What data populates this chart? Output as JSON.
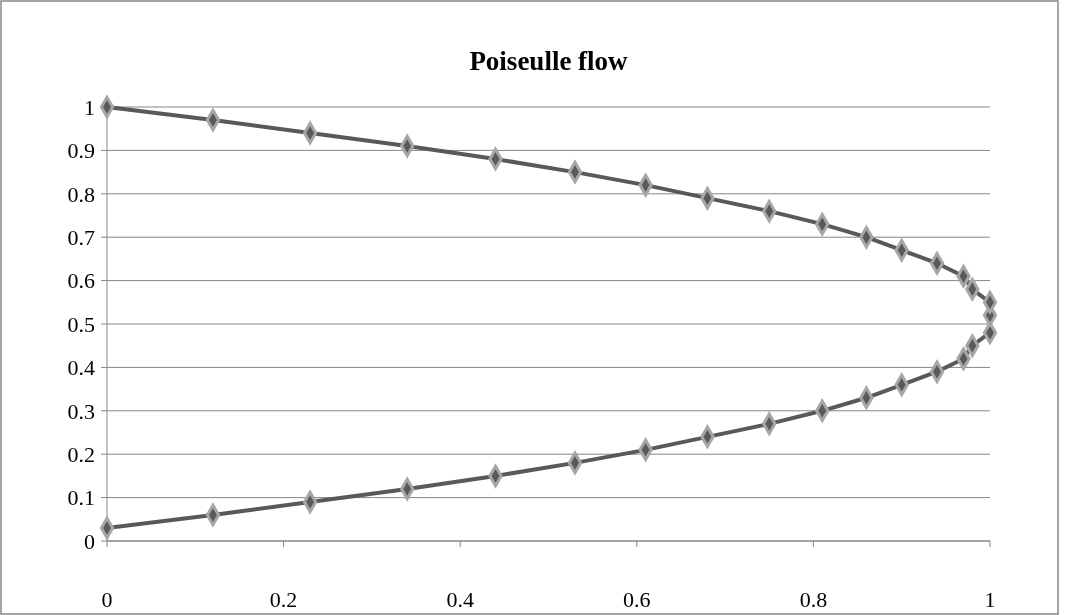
{
  "chart_data": {
    "type": "line",
    "title": "Poiseulle flow",
    "marker": "diamond",
    "grid": "y",
    "xlim": [
      0,
      1
    ],
    "xticks": [
      0,
      {
        "value": 0.2,
        "label": "0.2"
      },
      {
        "value": 0.4,
        "label": "0.4"
      },
      {
        "value": 0.6,
        "label": "0.6"
      },
      {
        "value": 0.8,
        "label": "0.8"
      },
      1
    ],
    "ylim": [
      0,
      1
    ],
    "yticks": [
      0,
      {
        "value": 0.1,
        "label": "0.1"
      },
      {
        "value": 0.2,
        "label": "0.2"
      },
      {
        "value": 0.3,
        "label": "0.3"
      },
      {
        "value": 0.4,
        "label": "0.4"
      },
      {
        "value": 0.5,
        "label": "0.5"
      },
      {
        "value": 0.6,
        "label": "0.6"
      },
      {
        "value": 0.7,
        "label": "0.7"
      },
      {
        "value": 0.8,
        "label": "0.8"
      },
      {
        "value": 0.9,
        "label": "0.9"
      },
      1
    ],
    "series": [
      {
        "color": "#595959",
        "x": [
          0,
          0.12,
          0.23,
          0.34,
          0.44,
          0.53,
          0.61,
          0.68,
          0.75,
          0.81,
          0.86,
          0.9,
          0.94,
          0.97,
          0.98,
          1,
          1,
          1,
          0.98,
          0.97,
          0.94,
          0.9,
          0.86,
          0.81,
          0.75,
          0.68,
          0.61,
          0.53,
          0.44,
          0.34,
          0.23,
          0.12,
          0
        ],
        "values": [
          0.03,
          0.06,
          0.09,
          0.12,
          0.15,
          0.18,
          0.21,
          0.24,
          0.27,
          0.3,
          0.33,
          0.36,
          0.39,
          0.42,
          0.45,
          0.48,
          0.52,
          0.55,
          0.58,
          0.61,
          0.64,
          0.67,
          0.7,
          0.73,
          0.76,
          0.79,
          0.82,
          0.85,
          0.88,
          0.91,
          0.94,
          0.97,
          1
        ]
      }
    ]
  }
}
